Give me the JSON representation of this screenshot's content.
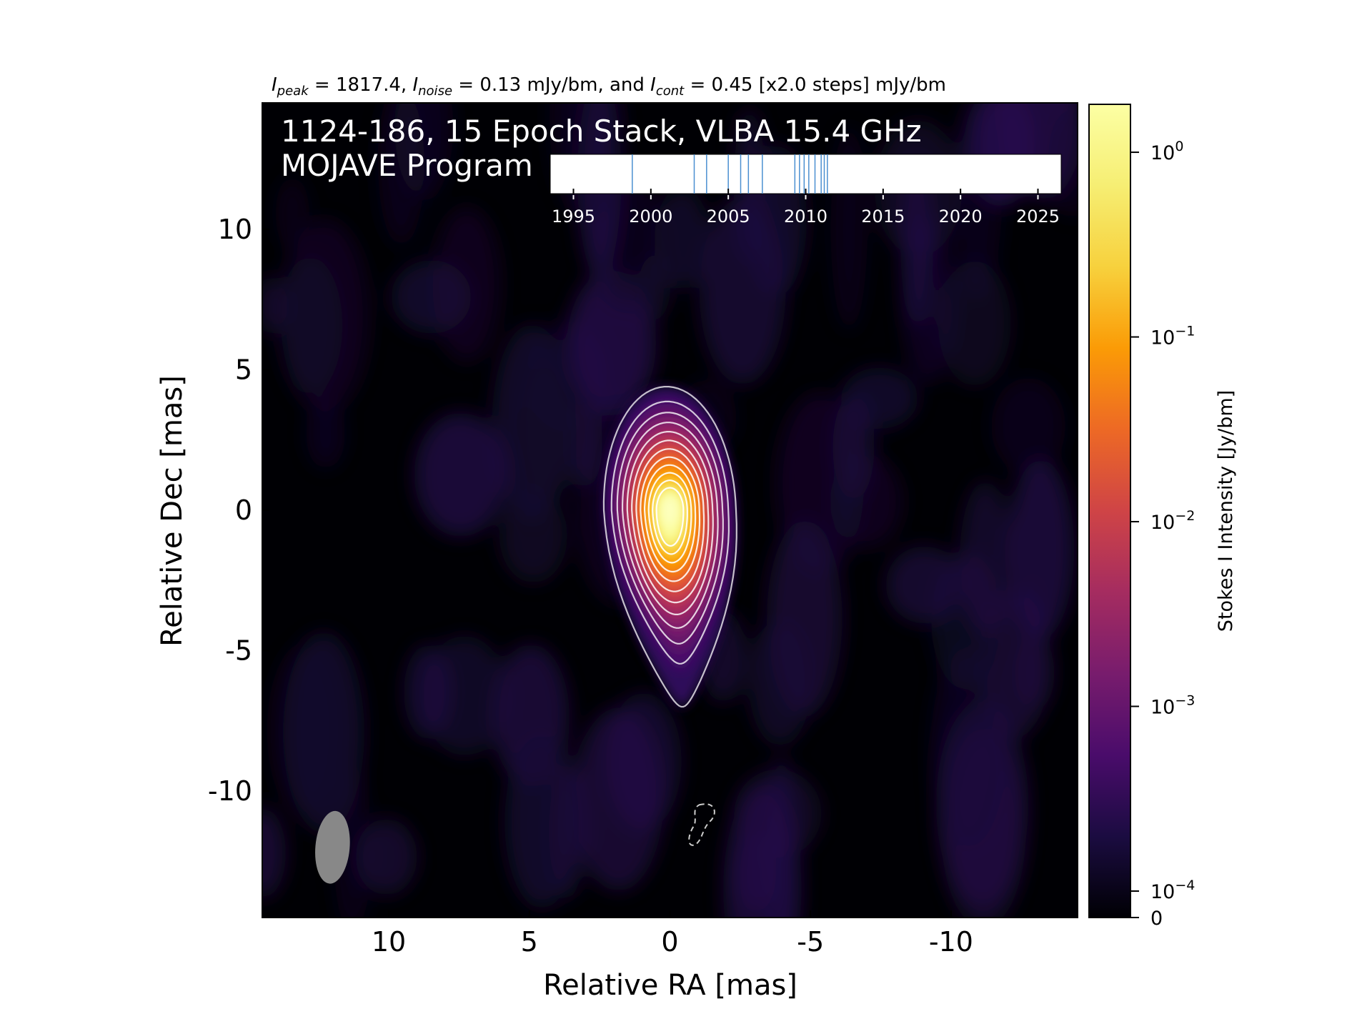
{
  "chart_data": {
    "type": "heatmap",
    "title": {
      "i_peak_sym": "I",
      "i_peak_sub": "peak",
      "i_peak_val": " = 1817.4, ",
      "i_noise_sym": "I",
      "i_noise_sub": "noise",
      "i_noise_val": " = 0.13 mJy/bm, and ",
      "i_cont_sym": "I",
      "i_cont_sub": "cont",
      "i_cont_val": " = 0.45 [x2.0 steps] mJy/bm"
    },
    "annotation_line1": "1124-186, 15 Epoch Stack, VLBA 15.4 GHz",
    "annotation_line2": "MOJAVE Program",
    "xlabel": "Relative RA [mas]",
    "ylabel": "Relative Dec [mas]",
    "xlim": [
      14.5,
      -14.5
    ],
    "ylim": [
      -14.5,
      14.5
    ],
    "xticks": [
      10,
      5,
      0,
      -5,
      -10
    ],
    "xtick_labels": [
      "10",
      "5",
      "0",
      "-5",
      "-10"
    ],
    "yticks": [
      10,
      5,
      0,
      -5,
      -10
    ],
    "ytick_labels": [
      "10",
      "5",
      "0",
      "-5",
      "-10"
    ],
    "colorbar": {
      "label": "Stokes I Intensity [Jy/bm]",
      "scale": "log",
      "colormap": "inferno",
      "range": [
        0,
        1.8174
      ],
      "ticks": [
        {
          "value": 1,
          "base": "10",
          "exp": "0"
        },
        {
          "value": 0.1,
          "base": "10",
          "exp": "−1"
        },
        {
          "value": 0.01,
          "base": "10",
          "exp": "−2"
        },
        {
          "value": 0.001,
          "base": "10",
          "exp": "−3"
        },
        {
          "value": 0.0001,
          "base": "10",
          "exp": "−4"
        },
        {
          "value": 0,
          "base": "0",
          "exp": ""
        }
      ]
    },
    "source": {
      "peak_jy": 1.8174,
      "peak_position": [
        0,
        0
      ],
      "extension": "south",
      "contour_base_mjy": 0.45,
      "contour_step": 2.0
    },
    "beam": {
      "center": [
        12,
        -12
      ]
    },
    "epoch_timeline": {
      "xlim": [
        1993.5,
        2026.5
      ],
      "ticks": [
        1995,
        2000,
        2005,
        2010,
        2015,
        2020,
        2025
      ],
      "tick_labels": [
        "1995",
        "2000",
        "2005",
        "2010",
        "2015",
        "2020",
        "2025"
      ],
      "epochs": [
        1998.8,
        2002.8,
        2003.6,
        2005.0,
        2005.8,
        2006.3,
        2007.2,
        2009.3,
        2009.6,
        2009.9,
        2010.2,
        2010.6,
        2011.0,
        2011.2,
        2011.4
      ]
    },
    "colors": {
      "background": "#000004",
      "contour": "#ffffff",
      "beam": "#888888",
      "epoch_line": "#4a8fd0"
    }
  }
}
